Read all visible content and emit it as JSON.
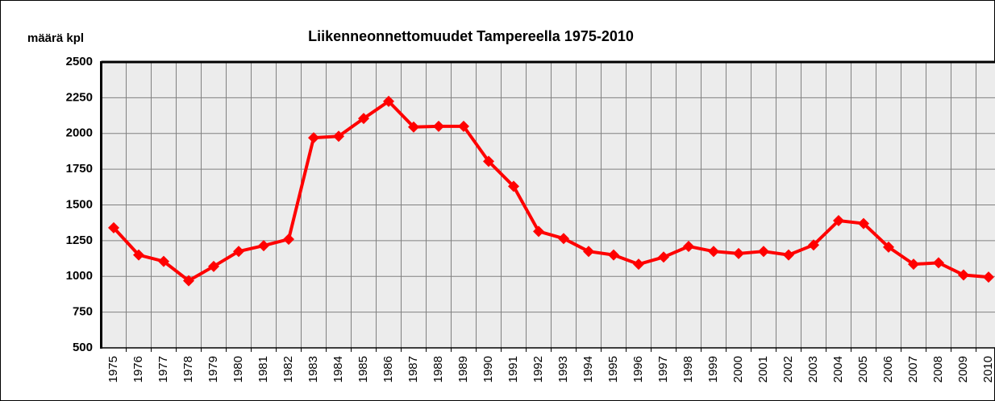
{
  "chart_data": {
    "type": "line",
    "title": "Liikenneonnettomuudet Tampereella 1975-2010",
    "y_label": "määrä kpl",
    "categories": [
      "1975",
      "1976",
      "1977",
      "1978",
      "1979",
      "1980",
      "1981",
      "1982",
      "1983",
      "1984",
      "1985",
      "1986",
      "1987",
      "1988",
      "1989",
      "1990",
      "1991",
      "1992",
      "1993",
      "1994",
      "1995",
      "1996",
      "1997",
      "1998",
      "1999",
      "2000",
      "2001",
      "2002",
      "2003",
      "2004",
      "2005",
      "2006",
      "2007",
      "2008",
      "2009",
      "2010"
    ],
    "series": [
      {
        "name": "Liikenneonnettomuudet",
        "color": "#ff0000",
        "values": [
          1340,
          1150,
          1105,
          970,
          1070,
          1175,
          1215,
          1260,
          1970,
          1980,
          2105,
          2225,
          2045,
          2050,
          2050,
          1805,
          1630,
          1315,
          1265,
          1175,
          1150,
          1085,
          1135,
          1210,
          1175,
          1160,
          1175,
          1150,
          1220,
          1390,
          1370,
          1205,
          1085,
          1095,
          1010,
          995
        ]
      }
    ],
    "ylim": [
      500,
      2500
    ],
    "yticks": [
      500,
      750,
      1000,
      1250,
      1500,
      1750,
      2000,
      2250,
      2500
    ],
    "grid": true
  }
}
